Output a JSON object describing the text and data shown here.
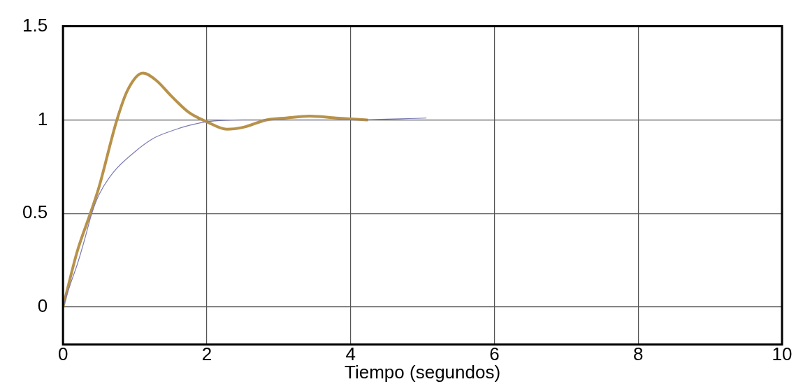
{
  "chart_data": {
    "type": "line",
    "xlabel": "Tiempo (segundos)",
    "xlim": [
      0,
      10
    ],
    "xticks": [
      0,
      2,
      4,
      6,
      8,
      10
    ],
    "ylim": [
      -0.2,
      1.5
    ],
    "yticks": [
      0,
      0.5,
      1,
      1.5
    ],
    "grid": true,
    "legend": false,
    "marker": "none",
    "line_style": "solid",
    "series": [
      {
        "color": "#7b7bb5",
        "x": [
          0,
          0.1,
          0.2,
          0.3,
          0.4,
          0.5,
          0.7,
          1,
          1.25,
          1.5,
          1.75,
          2,
          2.5,
          3,
          4,
          5.05
        ],
        "values": [
          0,
          0.12,
          0.23,
          0.36,
          0.5,
          0.6,
          0.72,
          0.83,
          0.9,
          0.94,
          0.97,
          0.99,
          1,
          1,
          1,
          1.01
        ]
      },
      {
        "color": "#b8924a",
        "x": [
          0,
          0.2,
          0.38,
          0.5,
          0.75,
          0.9,
          1.11,
          1.3,
          1.5,
          1.75,
          2,
          2.28,
          2.5,
          2.83,
          3.1,
          3.43,
          3.8,
          4.23
        ],
        "values": [
          0,
          0.3,
          0.5,
          0.64,
          1,
          1.16,
          1.25,
          1.21,
          1.13,
          1.04,
          0.99,
          0.95,
          0.96,
          1,
          1.01,
          1.02,
          1.01,
          1
        ]
      }
    ]
  }
}
